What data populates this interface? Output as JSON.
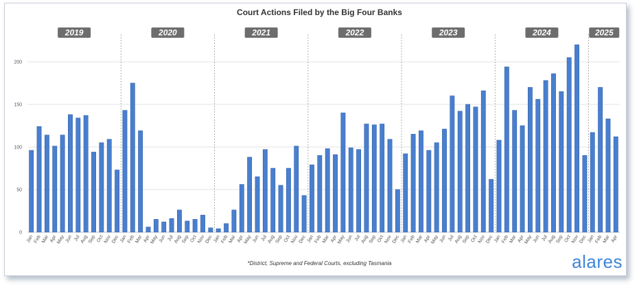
{
  "chart_data": {
    "type": "bar",
    "title": "Court Actions Filed by the Big Four Banks",
    "footnote": "*District, Supreme and Federal Courts, excluding Tasmania",
    "brand": "alares",
    "ylim": [
      0,
      220
    ],
    "yticks": [
      0,
      50,
      100,
      150,
      200
    ],
    "grid": true,
    "bar_color": "#4a7fcf",
    "year_badge_color": "#6d6d6d",
    "years": [
      {
        "label": "2019",
        "start": 0,
        "count": 12
      },
      {
        "label": "2020",
        "start": 12,
        "count": 12
      },
      {
        "label": "2021",
        "start": 24,
        "count": 12
      },
      {
        "label": "2022",
        "start": 36,
        "count": 12
      },
      {
        "label": "2023",
        "start": 48,
        "count": 12
      },
      {
        "label": "2024",
        "start": 60,
        "count": 12
      },
      {
        "label": "2025",
        "start": 72,
        "count": 4
      }
    ],
    "categories": [
      "Jan",
      "Feb",
      "Mar",
      "Apr",
      "May",
      "Jun",
      "Jul",
      "Aug",
      "Sep",
      "Oct",
      "Nov",
      "Dec",
      "Jan",
      "Feb",
      "Mar",
      "Apr",
      "May",
      "Jun",
      "Jul",
      "Aug",
      "Sep",
      "Oct",
      "Nov",
      "Dec",
      "Jan",
      "Feb",
      "Mar",
      "Apr",
      "May",
      "Jun",
      "Jul",
      "Aug",
      "Sep",
      "Oct",
      "Nov",
      "Dec",
      "Jan",
      "Feb",
      "Mar",
      "Apr",
      "May",
      "Jun",
      "Jul",
      "Aug",
      "Sep",
      "Oct",
      "Nov",
      "Dec",
      "Jan",
      "Feb",
      "Mar",
      "Apr",
      "May",
      "Jun",
      "Jul",
      "Aug",
      "Sep",
      "Oct",
      "Nov",
      "Dec",
      "Jan",
      "Feb",
      "Mar",
      "Apr",
      "May",
      "Jun",
      "Jul",
      "Aug",
      "Sep",
      "Oct",
      "Nov",
      "Dec",
      "Jan",
      "Feb",
      "Mar",
      "Apr"
    ],
    "values": [
      96,
      124,
      114,
      101,
      114,
      138,
      134,
      137,
      94,
      105,
      109,
      73,
      143,
      175,
      119,
      6,
      15,
      12,
      16,
      26,
      13,
      15,
      20,
      5,
      4,
      10,
      26,
      56,
      88,
      65,
      97,
      75,
      55,
      75,
      101,
      43,
      79,
      90,
      98,
      91,
      140,
      99,
      97,
      127,
      126,
      127,
      109,
      50,
      92,
      115,
      119,
      96,
      105,
      121,
      160,
      142,
      150,
      147,
      166,
      62,
      108,
      194,
      143,
      125,
      170,
      156,
      178,
      186,
      165,
      205,
      220,
      90,
      117,
      170,
      133,
      112
    ]
  }
}
